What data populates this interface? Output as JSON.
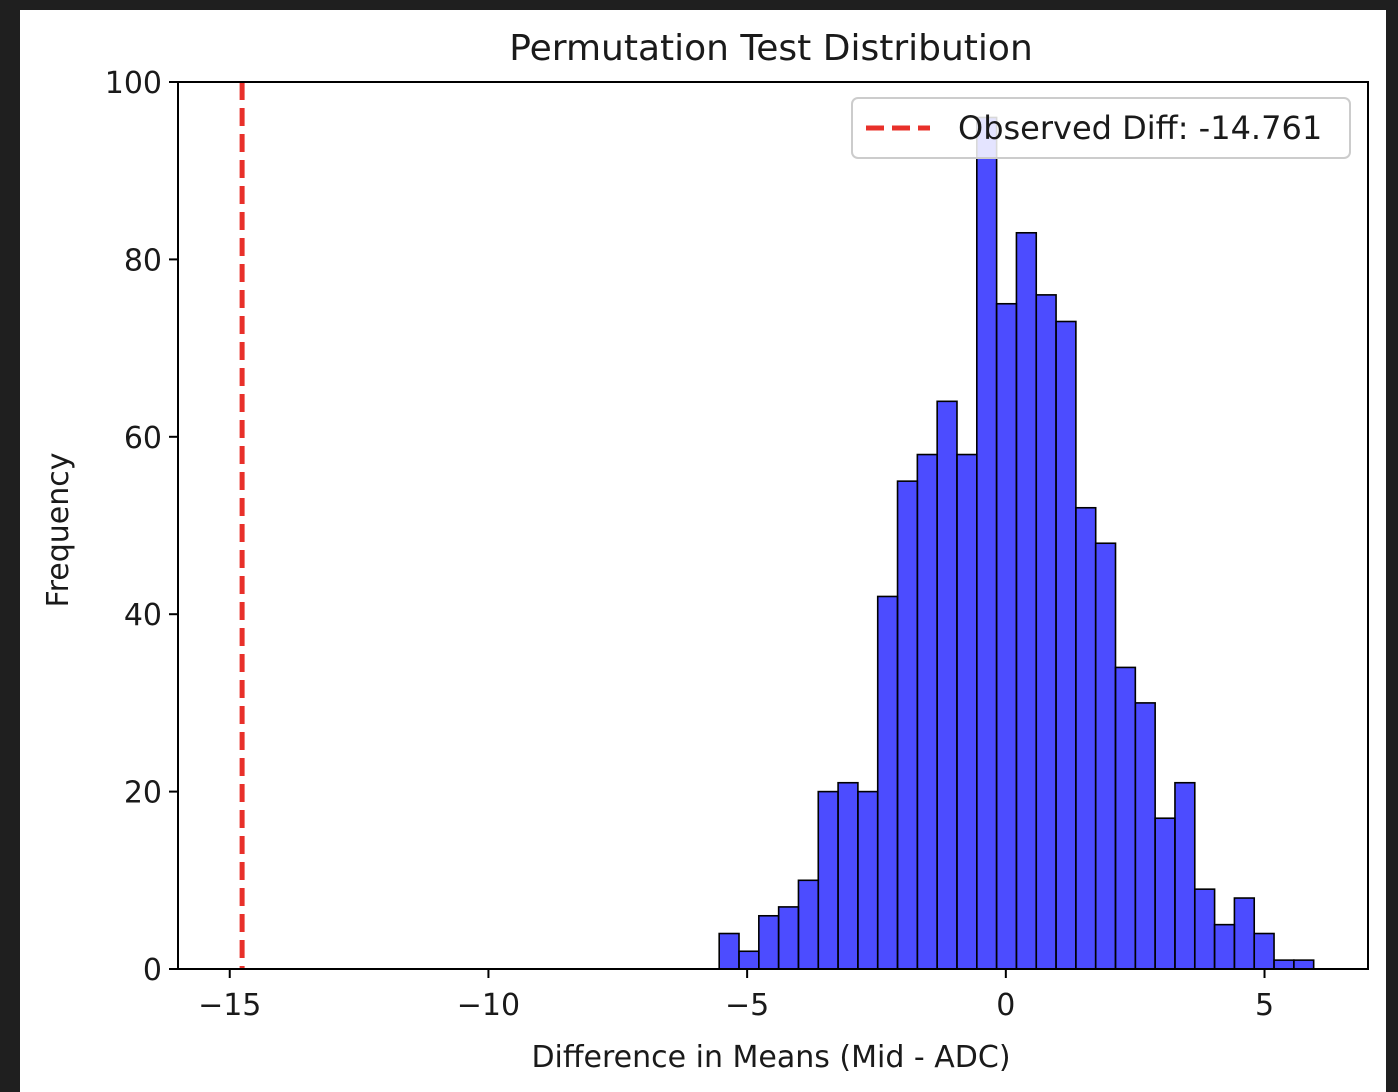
{
  "chart_data": {
    "type": "bar",
    "title": "Permutation Test Distribution",
    "xlabel": "Difference in Means (Mid - ADC)",
    "ylabel": "Frequency",
    "xlim": [
      -16,
      7
    ],
    "ylim": [
      0,
      100
    ],
    "xticks": [
      -15,
      -10,
      -5,
      0,
      5
    ],
    "xtick_labels": [
      "−15",
      "−10",
      "−5",
      "0",
      "5"
    ],
    "yticks": [
      0,
      20,
      40,
      60,
      80,
      100
    ],
    "ytick_labels": [
      "0",
      "20",
      "40",
      "60",
      "80",
      "100"
    ],
    "grid": false,
    "bar_color": "#0000ff",
    "bar_alpha": 0.7,
    "bar_edge_color": "#000000",
    "bin_width": 0.383,
    "bins": [
      {
        "left": -5.54,
        "count": 4
      },
      {
        "left": -5.157,
        "count": 2
      },
      {
        "left": -4.774,
        "count": 6
      },
      {
        "left": -4.391,
        "count": 7
      },
      {
        "left": -4.008,
        "count": 10
      },
      {
        "left": -3.625,
        "count": 20
      },
      {
        "left": -3.242,
        "count": 21
      },
      {
        "left": -2.859,
        "count": 20
      },
      {
        "left": -2.476,
        "count": 42
      },
      {
        "left": -2.093,
        "count": 55
      },
      {
        "left": -1.71,
        "count": 58
      },
      {
        "left": -1.327,
        "count": 64
      },
      {
        "left": -0.944,
        "count": 58
      },
      {
        "left": -0.561,
        "count": 96
      },
      {
        "left": -0.178,
        "count": 75
      },
      {
        "left": 0.205,
        "count": 83
      },
      {
        "left": 0.588,
        "count": 76
      },
      {
        "left": 0.971,
        "count": 73
      },
      {
        "left": 1.354,
        "count": 52
      },
      {
        "left": 1.737,
        "count": 48
      },
      {
        "left": 2.12,
        "count": 34
      },
      {
        "left": 2.503,
        "count": 30
      },
      {
        "left": 2.886,
        "count": 17
      },
      {
        "left": 3.269,
        "count": 21
      },
      {
        "left": 3.652,
        "count": 9
      },
      {
        "left": 4.035,
        "count": 5
      },
      {
        "left": 4.418,
        "count": 8
      },
      {
        "left": 4.801,
        "count": 4
      },
      {
        "left": 5.184,
        "count": 1
      },
      {
        "left": 5.567,
        "count": 1
      }
    ],
    "reference_line": {
      "x": -14.761,
      "style": "dashed",
      "color": "#e8302a",
      "label": "Observed Diff: -14.761"
    },
    "legend_position": "top-right"
  }
}
